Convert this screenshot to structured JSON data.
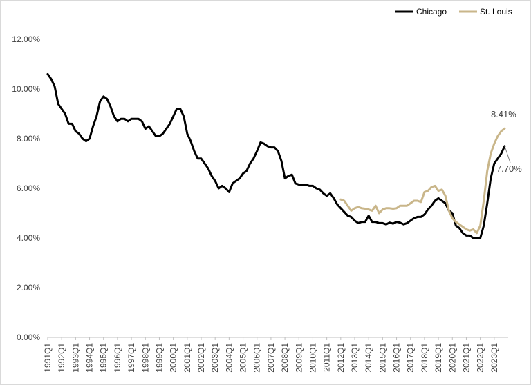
{
  "chart_data": {
    "type": "line",
    "title": "",
    "xlabel": "",
    "ylabel": "",
    "ylim": [
      0,
      12
    ],
    "y_ticks": [
      "0.00%",
      "2.00%",
      "4.00%",
      "6.00%",
      "8.00%",
      "10.00%",
      "12.00%"
    ],
    "x_range": [
      "1991Q1",
      "2024Q1"
    ],
    "x_tick_labels": [
      "1991Q1",
      "1992Q1",
      "1993Q1",
      "1994Q1",
      "1995Q1",
      "1996Q1",
      "1997Q1",
      "1998Q1",
      "1999Q1",
      "2000Q1",
      "2001Q1",
      "2002Q1",
      "2003Q1",
      "2004Q1",
      "2005Q1",
      "2006Q1",
      "2007Q1",
      "2008Q1",
      "2009Q1",
      "2010Q1",
      "2011Q1",
      "2012Q1",
      "2013Q1",
      "2014Q1",
      "2015Q1",
      "2016Q1",
      "2017Q1",
      "2018Q1",
      "2019Q1",
      "2020Q1",
      "2021Q1",
      "2022Q1",
      "2023Q1"
    ],
    "grid": false,
    "legend_position": "top-right",
    "series": [
      {
        "name": "Chicago",
        "color": "#000000",
        "points": [
          [
            "1991Q1",
            10.6
          ],
          [
            "1991Q2",
            10.4
          ],
          [
            "1991Q3",
            10.1
          ],
          [
            "1991Q4",
            9.4
          ],
          [
            "1992Q1",
            9.2
          ],
          [
            "1992Q2",
            9.0
          ],
          [
            "1992Q3",
            8.6
          ],
          [
            "1992Q4",
            8.6
          ],
          [
            "1993Q1",
            8.3
          ],
          [
            "1993Q2",
            8.2
          ],
          [
            "1993Q3",
            8.0
          ],
          [
            "1993Q4",
            7.9
          ],
          [
            "1994Q1",
            8.0
          ],
          [
            "1994Q2",
            8.5
          ],
          [
            "1994Q3",
            8.9
          ],
          [
            "1994Q4",
            9.5
          ],
          [
            "1995Q1",
            9.7
          ],
          [
            "1995Q2",
            9.6
          ],
          [
            "1995Q3",
            9.3
          ],
          [
            "1995Q4",
            8.9
          ],
          [
            "1996Q1",
            8.7
          ],
          [
            "1996Q2",
            8.8
          ],
          [
            "1996Q3",
            8.8
          ],
          [
            "1996Q4",
            8.7
          ],
          [
            "1997Q1",
            8.8
          ],
          [
            "1997Q2",
            8.8
          ],
          [
            "1997Q3",
            8.8
          ],
          [
            "1997Q4",
            8.7
          ],
          [
            "1998Q1",
            8.4
          ],
          [
            "1998Q2",
            8.5
          ],
          [
            "1998Q3",
            8.3
          ],
          [
            "1998Q4",
            8.1
          ],
          [
            "1999Q1",
            8.1
          ],
          [
            "1999Q2",
            8.2
          ],
          [
            "1999Q3",
            8.4
          ],
          [
            "1999Q4",
            8.6
          ],
          [
            "2000Q1",
            8.9
          ],
          [
            "2000Q2",
            9.2
          ],
          [
            "2000Q3",
            9.2
          ],
          [
            "2000Q4",
            8.9
          ],
          [
            "2001Q1",
            8.2
          ],
          [
            "2001Q2",
            7.9
          ],
          [
            "2001Q3",
            7.5
          ],
          [
            "2001Q4",
            7.2
          ],
          [
            "2002Q1",
            7.2
          ],
          [
            "2002Q2",
            7.0
          ],
          [
            "2002Q3",
            6.8
          ],
          [
            "2002Q4",
            6.5
          ],
          [
            "2003Q1",
            6.3
          ],
          [
            "2003Q2",
            6.0
          ],
          [
            "2003Q3",
            6.1
          ],
          [
            "2003Q4",
            6.0
          ],
          [
            "2004Q1",
            5.85
          ],
          [
            "2004Q2",
            6.2
          ],
          [
            "2004Q3",
            6.3
          ],
          [
            "2004Q4",
            6.4
          ],
          [
            "2005Q1",
            6.6
          ],
          [
            "2005Q2",
            6.7
          ],
          [
            "2005Q3",
            7.0
          ],
          [
            "2005Q4",
            7.2
          ],
          [
            "2006Q1",
            7.5
          ],
          [
            "2006Q2",
            7.85
          ],
          [
            "2006Q3",
            7.8
          ],
          [
            "2006Q4",
            7.7
          ],
          [
            "2007Q1",
            7.65
          ],
          [
            "2007Q2",
            7.65
          ],
          [
            "2007Q3",
            7.5
          ],
          [
            "2007Q4",
            7.1
          ],
          [
            "2008Q1",
            6.4
          ],
          [
            "2008Q2",
            6.5
          ],
          [
            "2008Q3",
            6.55
          ],
          [
            "2008Q4",
            6.2
          ],
          [
            "2009Q1",
            6.15
          ],
          [
            "2009Q2",
            6.15
          ],
          [
            "2009Q3",
            6.15
          ],
          [
            "2009Q4",
            6.1
          ],
          [
            "2010Q1",
            6.1
          ],
          [
            "2010Q2",
            6.0
          ],
          [
            "2010Q3",
            5.95
          ],
          [
            "2010Q4",
            5.8
          ],
          [
            "2011Q1",
            5.7
          ],
          [
            "2011Q2",
            5.8
          ],
          [
            "2011Q3",
            5.6
          ],
          [
            "2011Q4",
            5.35
          ],
          [
            "2012Q1",
            5.2
          ],
          [
            "2012Q2",
            5.05
          ],
          [
            "2012Q3",
            4.9
          ],
          [
            "2012Q4",
            4.85
          ],
          [
            "2013Q1",
            4.7
          ],
          [
            "2013Q2",
            4.6
          ],
          [
            "2013Q3",
            4.65
          ],
          [
            "2013Q4",
            4.65
          ],
          [
            "2014Q1",
            4.9
          ],
          [
            "2014Q2",
            4.65
          ],
          [
            "2014Q3",
            4.65
          ],
          [
            "2014Q4",
            4.6
          ],
          [
            "2015Q1",
            4.6
          ],
          [
            "2015Q2",
            4.55
          ],
          [
            "2015Q3",
            4.62
          ],
          [
            "2015Q4",
            4.58
          ],
          [
            "2016Q1",
            4.65
          ],
          [
            "2016Q2",
            4.62
          ],
          [
            "2016Q3",
            4.55
          ],
          [
            "2016Q4",
            4.6
          ],
          [
            "2017Q1",
            4.7
          ],
          [
            "2017Q2",
            4.8
          ],
          [
            "2017Q3",
            4.85
          ],
          [
            "2017Q4",
            4.85
          ],
          [
            "2018Q1",
            4.95
          ],
          [
            "2018Q2",
            5.15
          ],
          [
            "2018Q3",
            5.3
          ],
          [
            "2018Q4",
            5.5
          ],
          [
            "2019Q1",
            5.6
          ],
          [
            "2019Q2",
            5.5
          ],
          [
            "2019Q3",
            5.4
          ],
          [
            "2019Q4",
            5.1
          ],
          [
            "2020Q1",
            5.0
          ],
          [
            "2020Q2",
            4.5
          ],
          [
            "2020Q3",
            4.4
          ],
          [
            "2020Q4",
            4.2
          ],
          [
            "2021Q1",
            4.1
          ],
          [
            "2021Q2",
            4.1
          ],
          [
            "2021Q3",
            4.0
          ],
          [
            "2021Q4",
            4.0
          ],
          [
            "2022Q1",
            4.0
          ],
          [
            "2022Q2",
            4.5
          ],
          [
            "2022Q3",
            5.4
          ],
          [
            "2022Q4",
            6.4
          ],
          [
            "2023Q1",
            7.0
          ],
          [
            "2023Q2",
            7.2
          ],
          [
            "2023Q3",
            7.4
          ],
          [
            "2023Q4",
            7.7
          ]
        ]
      },
      {
        "name": "St. Louis",
        "color": "#c9b68a",
        "points": [
          [
            "2012Q1",
            5.55
          ],
          [
            "2012Q2",
            5.5
          ],
          [
            "2012Q3",
            5.3
          ],
          [
            "2012Q4",
            5.1
          ],
          [
            "2013Q1",
            5.2
          ],
          [
            "2013Q2",
            5.25
          ],
          [
            "2013Q3",
            5.2
          ],
          [
            "2013Q4",
            5.18
          ],
          [
            "2014Q1",
            5.15
          ],
          [
            "2014Q2",
            5.1
          ],
          [
            "2014Q3",
            5.3
          ],
          [
            "2014Q4",
            5.0
          ],
          [
            "2015Q1",
            5.15
          ],
          [
            "2015Q2",
            5.2
          ],
          [
            "2015Q3",
            5.2
          ],
          [
            "2015Q4",
            5.18
          ],
          [
            "2016Q1",
            5.2
          ],
          [
            "2016Q2",
            5.3
          ],
          [
            "2016Q3",
            5.3
          ],
          [
            "2016Q4",
            5.3
          ],
          [
            "2017Q1",
            5.4
          ],
          [
            "2017Q2",
            5.5
          ],
          [
            "2017Q3",
            5.5
          ],
          [
            "2017Q4",
            5.45
          ],
          [
            "2018Q1",
            5.85
          ],
          [
            "2018Q2",
            5.9
          ],
          [
            "2018Q3",
            6.05
          ],
          [
            "2018Q4",
            6.1
          ],
          [
            "2019Q1",
            5.9
          ],
          [
            "2019Q2",
            5.95
          ],
          [
            "2019Q3",
            5.7
          ],
          [
            "2019Q4",
            5.1
          ],
          [
            "2020Q1",
            4.8
          ],
          [
            "2020Q2",
            4.65
          ],
          [
            "2020Q3",
            4.55
          ],
          [
            "2020Q4",
            4.45
          ],
          [
            "2021Q1",
            4.35
          ],
          [
            "2021Q2",
            4.3
          ],
          [
            "2021Q3",
            4.35
          ],
          [
            "2021Q4",
            4.2
          ],
          [
            "2022Q1",
            4.5
          ],
          [
            "2022Q2",
            5.5
          ],
          [
            "2022Q3",
            6.7
          ],
          [
            "2022Q4",
            7.4
          ],
          [
            "2023Q1",
            7.8
          ],
          [
            "2023Q2",
            8.1
          ],
          [
            "2023Q3",
            8.3
          ],
          [
            "2023Q4",
            8.41
          ]
        ]
      }
    ],
    "annotations": [
      {
        "series": "St. Louis",
        "text": "8.41%"
      },
      {
        "series": "Chicago",
        "text": "7.70%"
      }
    ]
  }
}
